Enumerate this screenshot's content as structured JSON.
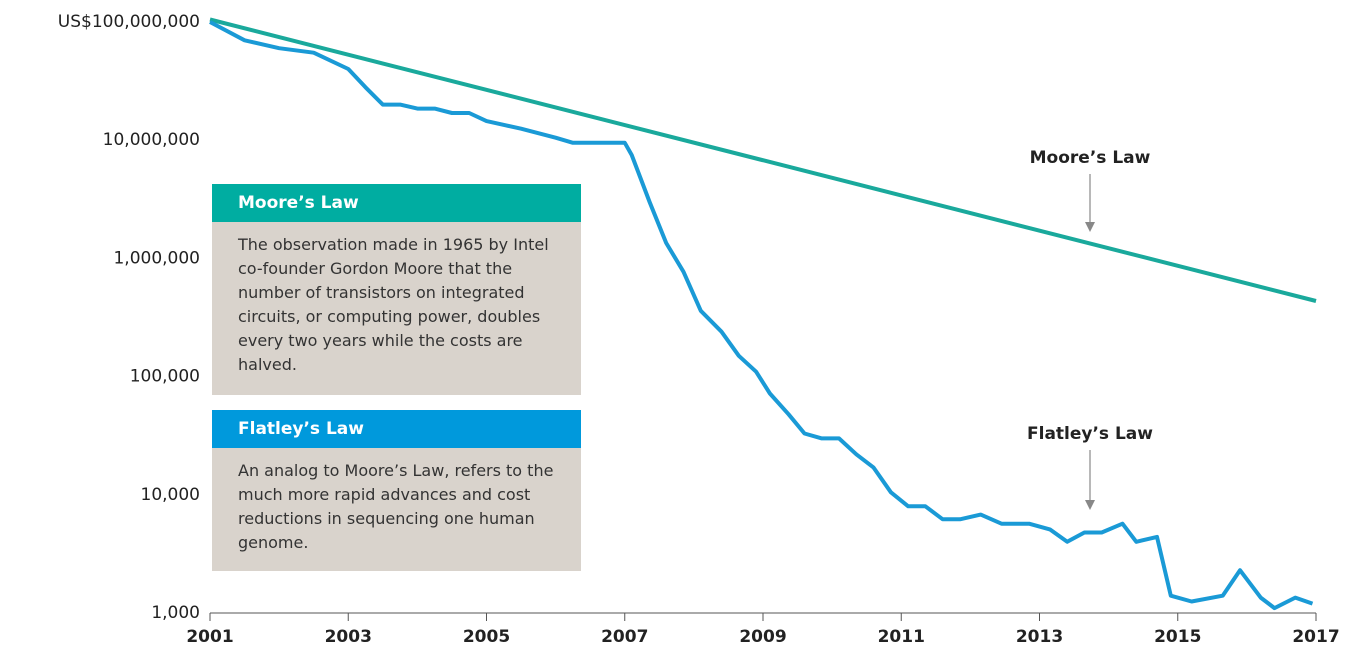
{
  "chart_data": {
    "type": "line",
    "log_y": true,
    "xlim": [
      2001,
      2017
    ],
    "xticks": [
      2001,
      2003,
      2005,
      2007,
      2009,
      2011,
      2013,
      2015,
      2017
    ],
    "ylim": [
      1000,
      100000000
    ],
    "yticks": [
      {
        "value": 1000,
        "label": "1,000"
      },
      {
        "value": 10000,
        "label": "10,000"
      },
      {
        "value": 100000,
        "label": "100,000"
      },
      {
        "value": 1000000,
        "label": "1,000,000"
      },
      {
        "value": 10000000,
        "label": "10,000,000"
      },
      {
        "value": 100000000,
        "label": "US$100,000,000"
      }
    ],
    "series": [
      {
        "name": "Moore’s Law",
        "color": "#1aa99c",
        "x": [
          2001,
          2017
        ],
        "values": [
          105000000,
          436000
        ]
      },
      {
        "name": "Flatley’s Law",
        "color": "#1a9ad6",
        "x": [
          2001,
          2001.5,
          2002,
          2002.5,
          2003,
          2003.25,
          2003.5,
          2003.75,
          2004,
          2004.25,
          2004.5,
          2004.75,
          2005,
          2005.5,
          2006,
          2006.25,
          2006.75,
          2007,
          2007.1,
          2007.36,
          2007.6,
          2007.85,
          2008.1,
          2008.4,
          2008.65,
          2008.9,
          2009.1,
          2009.37,
          2009.6,
          2009.85,
          2010.1,
          2010.35,
          2010.6,
          2010.85,
          2011.1,
          2011.35,
          2011.6,
          2011.85,
          2012.15,
          2012.45,
          2012.85,
          2013.15,
          2013.4,
          2013.65,
          2013.9,
          2014.2,
          2014.4,
          2014.7,
          2014.9,
          2015.2,
          2015.65,
          2015.9,
          2016.2,
          2016.4,
          2016.7,
          2016.95
        ],
        "values": [
          100000000,
          70000000,
          60000000,
          55000000,
          40000000,
          28000000,
          20000000,
          20000000,
          18500000,
          18500000,
          17000000,
          17000000,
          14500000,
          12500000,
          10500000,
          9500000,
          9500000,
          9500000,
          7500000,
          3000000,
          1350000,
          770000,
          360000,
          240000,
          150000,
          110000,
          72000,
          48000,
          33000,
          30000,
          30000,
          22000,
          17000,
          10500,
          8000,
          8000,
          6200,
          6200,
          6800,
          5700,
          5700,
          5100,
          4000,
          4800,
          4800,
          5700,
          4000,
          4400,
          1400,
          1250,
          1400,
          2300,
          1350,
          1100,
          1350,
          1200
        ]
      }
    ],
    "definitions": [
      {
        "title": "Moore’s Law",
        "text": "The observation made in 1965 by Intel co-founder Gordon Moore that the number of transistors on integrated circuits, or computing power, doubles every two years while the costs are halved."
      },
      {
        "title": "Flatley’s Law",
        "text": "An analog to Moore’s Law, refers to the much more rapid advances and cost reductions in sequencing one human genome."
      }
    ]
  }
}
